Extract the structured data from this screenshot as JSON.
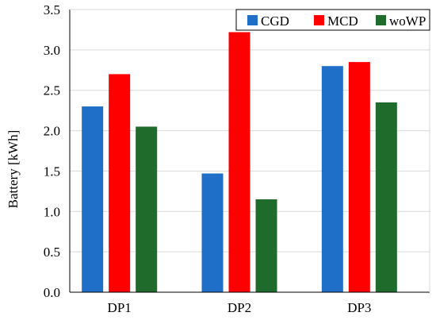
{
  "chart_data": {
    "type": "bar",
    "categories": [
      "DP1",
      "DP2",
      "DP3"
    ],
    "series": [
      {
        "name": "CGD",
        "values": [
          2.3,
          1.47,
          2.8
        ],
        "color": "#1f6fc9"
      },
      {
        "name": "MCD",
        "values": [
          2.7,
          3.22,
          2.85
        ],
        "color": "#ff0000"
      },
      {
        "name": "woWP",
        "values": [
          2.05,
          1.15,
          2.35
        ],
        "color": "#1e6b2b"
      }
    ],
    "ylabel": "Battery [kWh]",
    "ylim": [
      0,
      3.5
    ],
    "yticks": [
      "0.0",
      "0.5",
      "1.0",
      "1.5",
      "2.0",
      "2.5",
      "3.0",
      "3.5"
    ],
    "grid": true,
    "legend_position": "top-right"
  }
}
